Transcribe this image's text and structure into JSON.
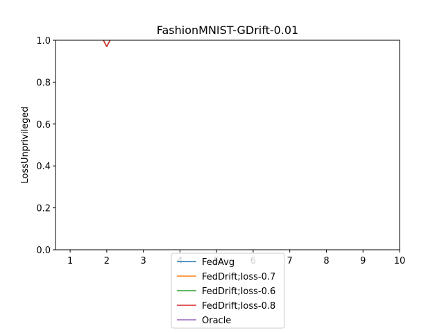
{
  "chart_data": {
    "type": "line",
    "title": "FashionMNIST-GDrift-0.01",
    "xlabel": "",
    "ylabel": "LossUnprivileged",
    "xlim": [
      0.6,
      10
    ],
    "ylim": [
      0,
      1.0
    ],
    "xticks": [
      1,
      2,
      3,
      4,
      5,
      6,
      7,
      8,
      9,
      10
    ],
    "yticks": [
      0.0,
      0.2,
      0.4,
      0.6,
      0.8,
      1.0
    ],
    "grid": false,
    "legend_position": "bottom-center",
    "series": [
      {
        "name": "FedAvg",
        "color": "#1f77b4",
        "x": [
          1,
          2,
          3,
          4,
          5,
          6,
          7,
          8,
          9,
          10
        ],
        "y": [
          1.3,
          0.97,
          1.3,
          1.3,
          1.3,
          1.3,
          1.3,
          1.3,
          1.3,
          1.3
        ]
      },
      {
        "name": "FedDrift;loss-0.7",
        "color": "#ff7f0e",
        "x": [
          1,
          2,
          3,
          4,
          5,
          6,
          7,
          8,
          9,
          10
        ],
        "y": [
          1.3,
          0.97,
          1.3,
          1.3,
          1.3,
          1.3,
          1.3,
          1.3,
          1.3,
          1.3
        ]
      },
      {
        "name": "FedDrift;loss-0.6",
        "color": "#2ca02c",
        "x": [
          1,
          2,
          3,
          4,
          5,
          6,
          7,
          8,
          9,
          10
        ],
        "y": [
          1.3,
          0.97,
          1.3,
          1.3,
          1.3,
          1.3,
          1.3,
          1.3,
          1.3,
          1.3
        ]
      },
      {
        "name": "FedDrift;loss-0.8",
        "color": "#d62728",
        "x": [
          1,
          2,
          3,
          4,
          5,
          6,
          7,
          8,
          9,
          10
        ],
        "y": [
          1.3,
          0.97,
          1.3,
          1.3,
          1.3,
          1.3,
          1.3,
          1.3,
          1.3,
          1.3
        ]
      },
      {
        "name": "Oracle",
        "color": "#9467bd",
        "x": [],
        "y": []
      }
    ]
  }
}
